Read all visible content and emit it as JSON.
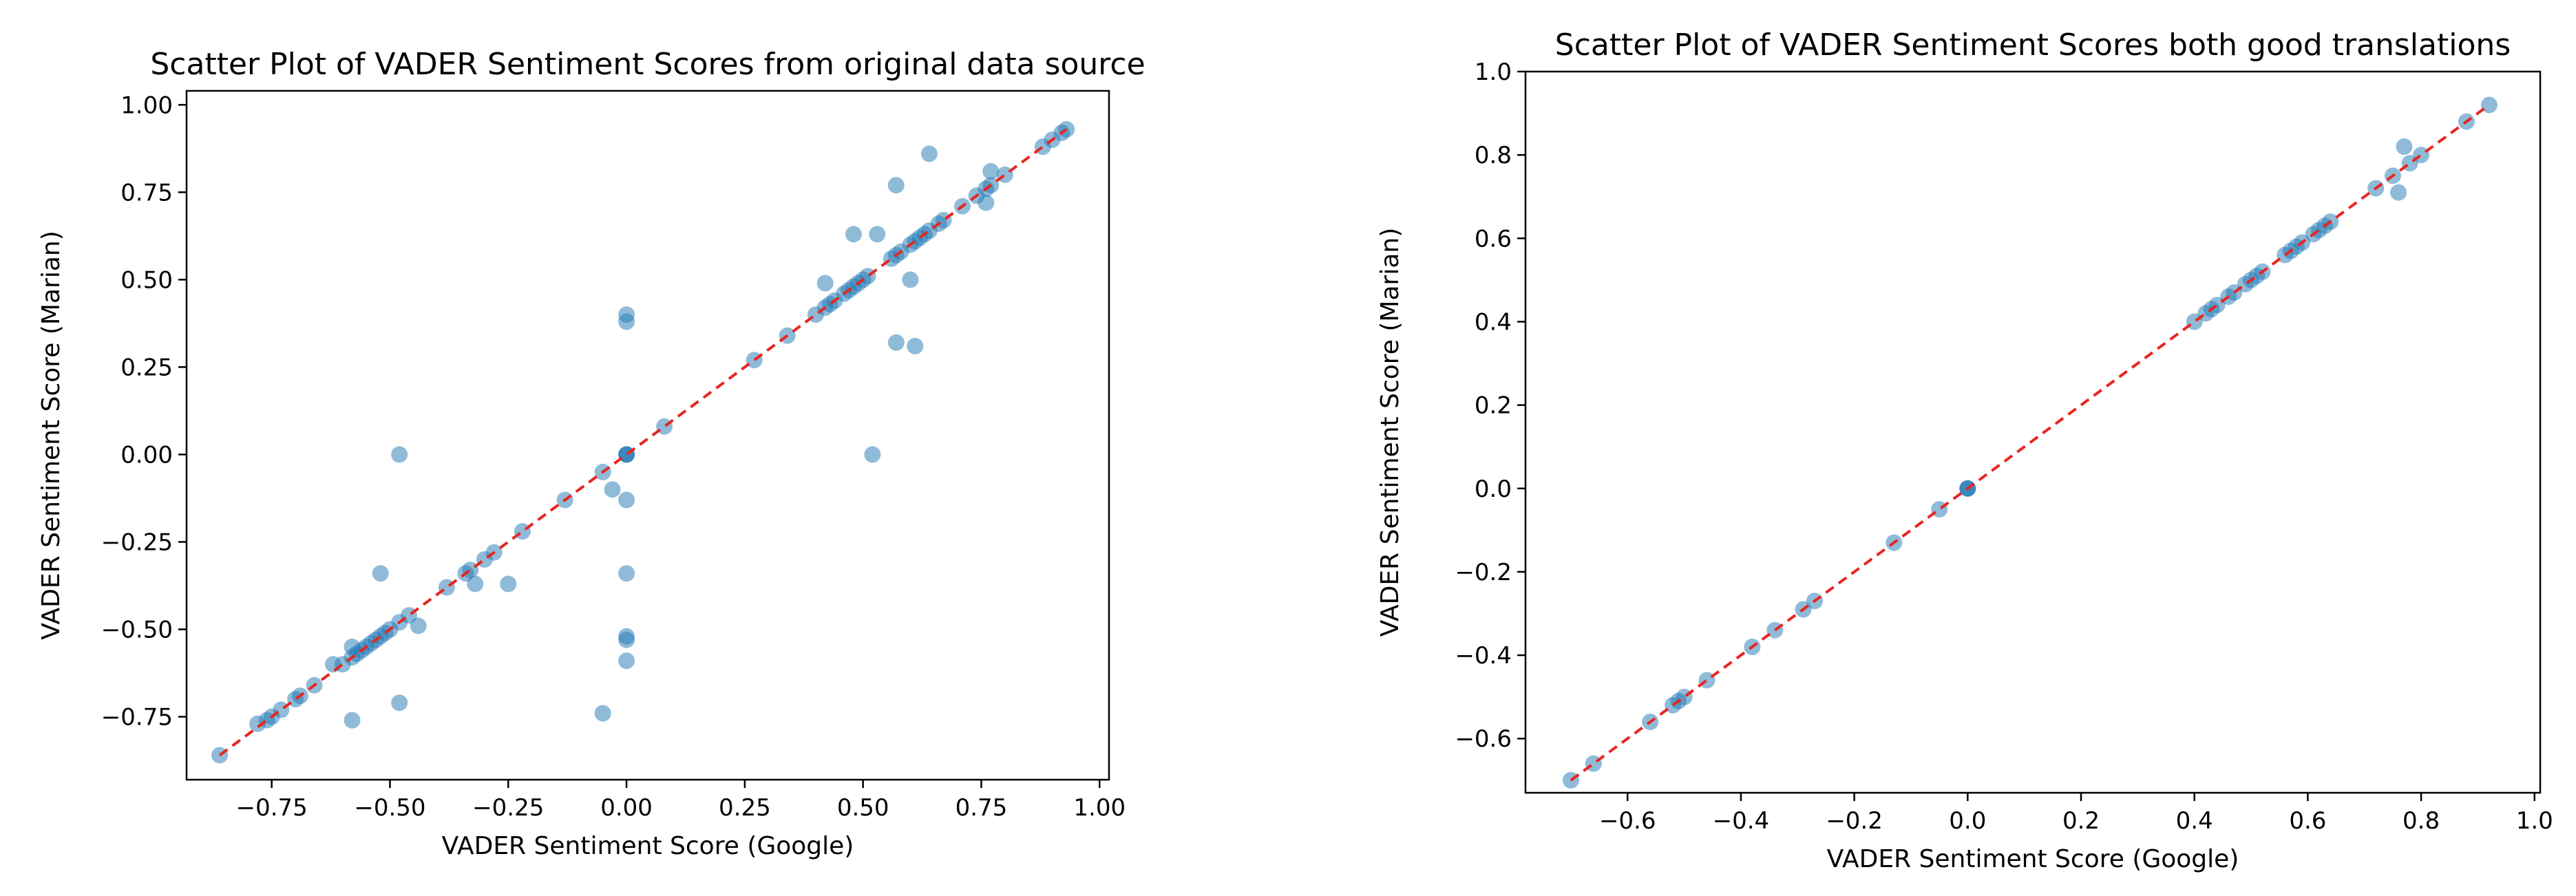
{
  "chart_data": [
    {
      "type": "scatter",
      "title": "Scatter Plot of VADER Sentiment Scores from original data source",
      "xlabel": "VADER Sentiment Score (Google)",
      "ylabel": "VADER Sentiment Score (Marian)",
      "xlim": [
        -0.93,
        1.02
      ],
      "ylim": [
        -0.93,
        1.04
      ],
      "xticks": [
        -0.75,
        -0.5,
        -0.25,
        0.0,
        0.25,
        0.5,
        0.75,
        1.0
      ],
      "yticks": [
        -0.75,
        -0.5,
        -0.25,
        0.0,
        0.25,
        0.5,
        0.75,
        1.0
      ],
      "xticklabels": [
        "−0.75",
        "−0.50",
        "−0.25",
        "0.00",
        "0.25",
        "0.50",
        "0.75",
        "1.00"
      ],
      "yticklabels": [
        "−0.75",
        "−0.50",
        "−0.25",
        "0.00",
        "0.25",
        "0.50",
        "0.75",
        "1.00"
      ],
      "grid": false,
      "point_color": "#1f77b4",
      "reference_line": {
        "x": [
          -0.86,
          0.93
        ],
        "y": [
          -0.86,
          0.93
        ],
        "color": "#e8251f",
        "style": "dashed"
      },
      "x": [
        -0.86,
        -0.78,
        -0.76,
        -0.75,
        -0.73,
        -0.7,
        -0.69,
        -0.66,
        -0.62,
        -0.6,
        -0.58,
        -0.57,
        -0.56,
        -0.55,
        -0.54,
        -0.53,
        -0.52,
        -0.51,
        -0.5,
        -0.48,
        -0.46,
        -0.44,
        -0.38,
        -0.34,
        -0.33,
        -0.32,
        -0.3,
        -0.28,
        -0.25,
        -0.22,
        -0.13,
        -0.05,
        -0.03,
        0.0,
        0.0,
        0.0,
        0.0,
        0.0,
        0.0,
        0.0,
        0.0,
        0.0,
        0.0,
        0.08,
        0.27,
        0.34,
        0.4,
        0.42,
        0.43,
        0.44,
        0.46,
        0.47,
        0.48,
        0.49,
        0.5,
        0.51,
        0.56,
        0.57,
        0.58,
        0.6,
        0.61,
        0.62,
        0.63,
        0.64,
        0.66,
        0.67,
        0.71,
        0.74,
        0.76,
        0.77,
        0.8,
        0.88,
        0.9,
        0.92,
        0.93,
        -0.58,
        -0.52,
        -0.48,
        -0.48,
        -0.58,
        -0.05,
        0.57,
        0.64,
        0.48,
        0.53,
        0.42,
        0.52,
        0.57,
        0.61,
        0.76,
        0.77,
        0.6
      ],
      "y": [
        -0.86,
        -0.77,
        -0.76,
        -0.75,
        -0.73,
        -0.7,
        -0.69,
        -0.66,
        -0.6,
        -0.6,
        -0.58,
        -0.57,
        -0.56,
        -0.55,
        -0.54,
        -0.53,
        -0.52,
        -0.51,
        -0.5,
        -0.48,
        -0.46,
        -0.49,
        -0.38,
        -0.34,
        -0.33,
        -0.37,
        -0.3,
        -0.28,
        -0.37,
        -0.22,
        -0.13,
        -0.05,
        -0.1,
        0.0,
        0.0,
        0.4,
        0.38,
        -0.13,
        -0.34,
        -0.52,
        -0.53,
        -0.59,
        -0.0,
        0.08,
        0.27,
        0.34,
        0.4,
        0.42,
        0.43,
        0.44,
        0.46,
        0.47,
        0.48,
        0.49,
        0.5,
        0.51,
        0.56,
        0.57,
        0.58,
        0.6,
        0.61,
        0.62,
        0.63,
        0.64,
        0.66,
        0.67,
        0.71,
        0.74,
        0.76,
        0.77,
        0.8,
        0.88,
        0.9,
        0.92,
        0.93,
        -0.55,
        -0.34,
        0.0,
        -0.71,
        -0.76,
        -0.74,
        0.77,
        0.86,
        0.63,
        0.63,
        0.49,
        0.0,
        0.32,
        0.31,
        0.72,
        0.81,
        0.5
      ]
    },
    {
      "type": "scatter",
      "title": "Scatter Plot of VADER Sentiment Scores both good translations",
      "xlabel": "VADER Sentiment Score (Google)",
      "ylabel": "VADER Sentiment Score (Marian)",
      "xlim": [
        -0.78,
        1.01
      ],
      "ylim": [
        -0.73,
        1.0
      ],
      "xticks": [
        -0.6,
        -0.4,
        -0.2,
        0.0,
        0.2,
        0.4,
        0.6,
        0.8,
        1.0
      ],
      "yticks": [
        -0.6,
        -0.4,
        -0.2,
        0.0,
        0.2,
        0.4,
        0.6,
        0.8,
        1.0
      ],
      "xticklabels": [
        "−0.6",
        "−0.4",
        "−0.2",
        "0.0",
        "0.2",
        "0.4",
        "0.6",
        "0.8",
        "1.0"
      ],
      "yticklabels": [
        "−0.6",
        "−0.4",
        "−0.2",
        "0.0",
        "0.2",
        "0.4",
        "0.6",
        "0.8",
        "1.0"
      ],
      "grid": false,
      "point_color": "#1f77b4",
      "reference_line": {
        "x": [
          -0.7,
          0.92
        ],
        "y": [
          -0.7,
          0.92
        ],
        "color": "#e8251f",
        "style": "dashed"
      },
      "x": [
        -0.7,
        -0.66,
        -0.56,
        -0.52,
        -0.51,
        -0.5,
        -0.46,
        -0.38,
        -0.34,
        -0.29,
        -0.27,
        -0.13,
        -0.05,
        0.0,
        0.0,
        0.0,
        0.4,
        0.42,
        0.43,
        0.44,
        0.46,
        0.47,
        0.49,
        0.5,
        0.51,
        0.52,
        0.56,
        0.57,
        0.58,
        0.59,
        0.61,
        0.62,
        0.63,
        0.64,
        0.72,
        0.75,
        0.76,
        0.77,
        0.78,
        0.8,
        0.88,
        0.92
      ],
      "y": [
        -0.7,
        -0.66,
        -0.56,
        -0.52,
        -0.51,
        -0.5,
        -0.46,
        -0.38,
        -0.34,
        -0.29,
        -0.27,
        -0.13,
        -0.05,
        0.0,
        0.0,
        0.0,
        0.4,
        0.42,
        0.43,
        0.44,
        0.46,
        0.47,
        0.49,
        0.5,
        0.51,
        0.52,
        0.56,
        0.57,
        0.58,
        0.59,
        0.61,
        0.62,
        0.63,
        0.64,
        0.72,
        0.75,
        0.71,
        0.82,
        0.78,
        0.8,
        0.88,
        0.92
      ]
    }
  ]
}
